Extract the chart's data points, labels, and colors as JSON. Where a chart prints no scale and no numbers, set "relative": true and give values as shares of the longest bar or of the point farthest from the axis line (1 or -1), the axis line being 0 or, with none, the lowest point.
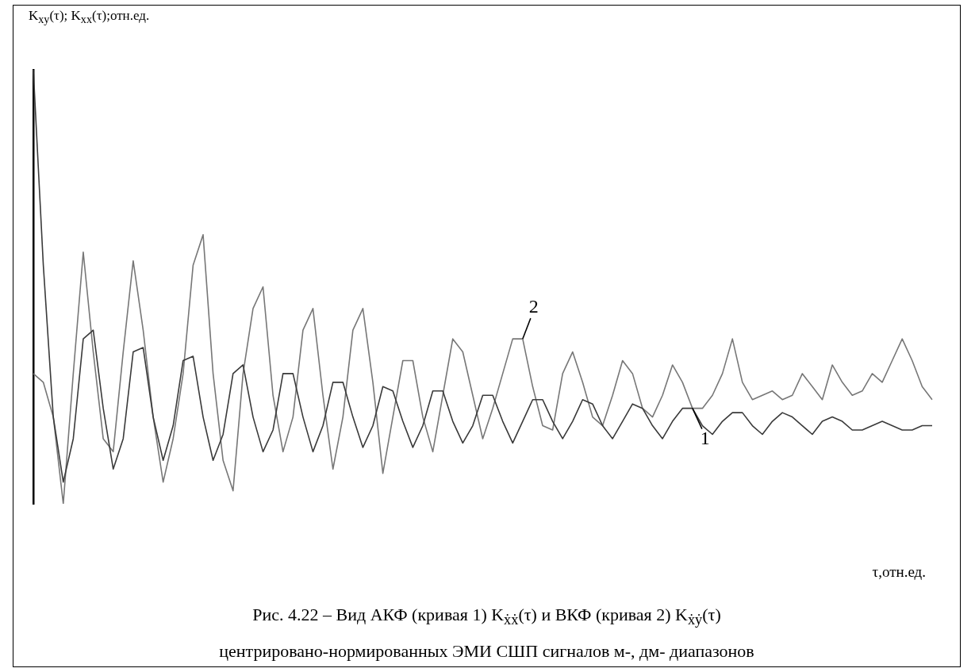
{
  "chart_data": {
    "type": "line",
    "relative": true,
    "ylabel": "K$_{xy}$(τ); K$_{xx}$(τ);отн.ед.",
    "xlabel": "τ,отн.ед.",
    "categories": [
      null,
      null,
      null,
      null,
      null,
      null,
      null,
      null,
      null,
      null,
      null,
      null,
      null,
      null,
      null,
      null,
      null,
      null,
      null,
      null,
      null,
      null,
      null,
      null,
      null,
      null,
      null,
      null,
      null,
      null,
      null,
      null,
      null,
      null,
      null,
      null,
      null,
      null,
      null,
      null,
      null,
      null,
      null,
      null,
      null,
      null,
      null,
      null,
      null,
      null,
      null,
      null,
      null,
      null,
      null,
      null,
      null,
      null,
      null,
      null,
      null,
      null,
      null,
      null,
      null,
      null,
      null,
      null,
      null,
      null,
      null,
      null,
      null,
      null,
      null,
      null,
      null,
      null,
      null,
      null,
      null,
      null,
      null,
      null,
      null,
      null,
      null,
      null,
      null,
      null,
      null
    ],
    "tick_labels": false,
    "grid": false,
    "legend": false,
    "marker": "none",
    "line_style": "solid",
    "series": [
      {
        "name": "1",
        "color": "#3a3a3a",
        "values": [
          1.0,
          0.55,
          0.2,
          0.05,
          0.15,
          0.38,
          0.4,
          0.22,
          0.08,
          0.15,
          0.35,
          0.36,
          0.2,
          0.1,
          0.18,
          0.33,
          0.34,
          0.2,
          0.1,
          0.16,
          0.3,
          0.32,
          0.2,
          0.12,
          0.17,
          0.3,
          0.3,
          0.2,
          0.12,
          0.18,
          0.28,
          0.28,
          0.2,
          0.13,
          0.18,
          0.27,
          0.26,
          0.19,
          0.13,
          0.18,
          0.26,
          0.26,
          0.19,
          0.14,
          0.18,
          0.25,
          0.25,
          0.19,
          0.14,
          0.19,
          0.24,
          0.24,
          0.19,
          0.15,
          0.19,
          0.24,
          0.23,
          0.18,
          0.15,
          0.19,
          0.23,
          0.22,
          0.18,
          0.15,
          0.19,
          0.22,
          0.22,
          0.18,
          0.16,
          0.19,
          0.21,
          0.21,
          0.18,
          0.16,
          0.19,
          0.21,
          0.2,
          0.18,
          0.16,
          0.19,
          0.2,
          0.19,
          0.17,
          0.17,
          0.18,
          0.19,
          0.18,
          0.17,
          0.17,
          0.18,
          0.18
        ]
      },
      {
        "name": "2",
        "color": "#777777",
        "values": [
          0.3,
          0.28,
          0.2,
          0.0,
          0.3,
          0.58,
          0.35,
          0.15,
          0.12,
          0.35,
          0.56,
          0.4,
          0.2,
          0.05,
          0.15,
          0.3,
          0.55,
          0.62,
          0.3,
          0.1,
          0.03,
          0.3,
          0.45,
          0.5,
          0.25,
          0.12,
          0.2,
          0.4,
          0.45,
          0.25,
          0.08,
          0.2,
          0.4,
          0.45,
          0.28,
          0.07,
          0.2,
          0.33,
          0.33,
          0.2,
          0.12,
          0.25,
          0.38,
          0.35,
          0.25,
          0.15,
          0.22,
          0.3,
          0.38,
          0.38,
          0.27,
          0.18,
          0.17,
          0.3,
          0.35,
          0.28,
          0.2,
          0.18,
          0.25,
          0.33,
          0.3,
          0.22,
          0.2,
          0.25,
          0.32,
          0.28,
          0.22,
          0.22,
          0.25,
          0.3,
          0.38,
          0.28,
          0.24,
          0.25,
          0.26,
          0.24,
          0.25,
          0.3,
          0.27,
          0.24,
          0.32,
          0.28,
          0.25,
          0.26,
          0.3,
          0.28,
          0.33,
          0.38,
          0.33,
          0.27,
          0.24
        ]
      }
    ],
    "annotations": [
      "Рис. 4.22 – Вид АКФ (кривая 1) K$_{ẋẋ}$(τ) и ВКФ (кривая 2) K$_{ẋẏ}$(τ)",
      "центрировано-нормированных ЭМИ СШП сигналов м-, дм- диапазонов"
    ]
  }
}
